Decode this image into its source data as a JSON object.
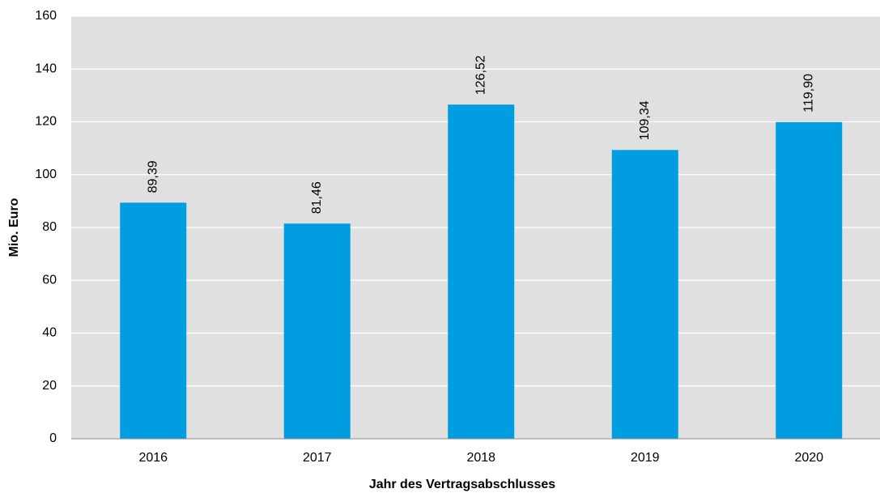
{
  "chart_data": {
    "type": "bar",
    "x_label": "Jahr des Vertragsabschlusses",
    "y_label": "Mio. Euro",
    "categories": [
      "2016",
      "2017",
      "2018",
      "2019",
      "2020"
    ],
    "values": [
      89.39,
      81.46,
      126.52,
      109.34,
      119.9
    ],
    "value_labels": [
      "89,39",
      "81,46",
      "126,52",
      "109,34",
      "119,90"
    ],
    "color": "#009de0",
    "ylim": [
      0,
      160
    ],
    "yticks": [
      0,
      20,
      40,
      60,
      80,
      100,
      120,
      140,
      160
    ],
    "grid": true
  }
}
